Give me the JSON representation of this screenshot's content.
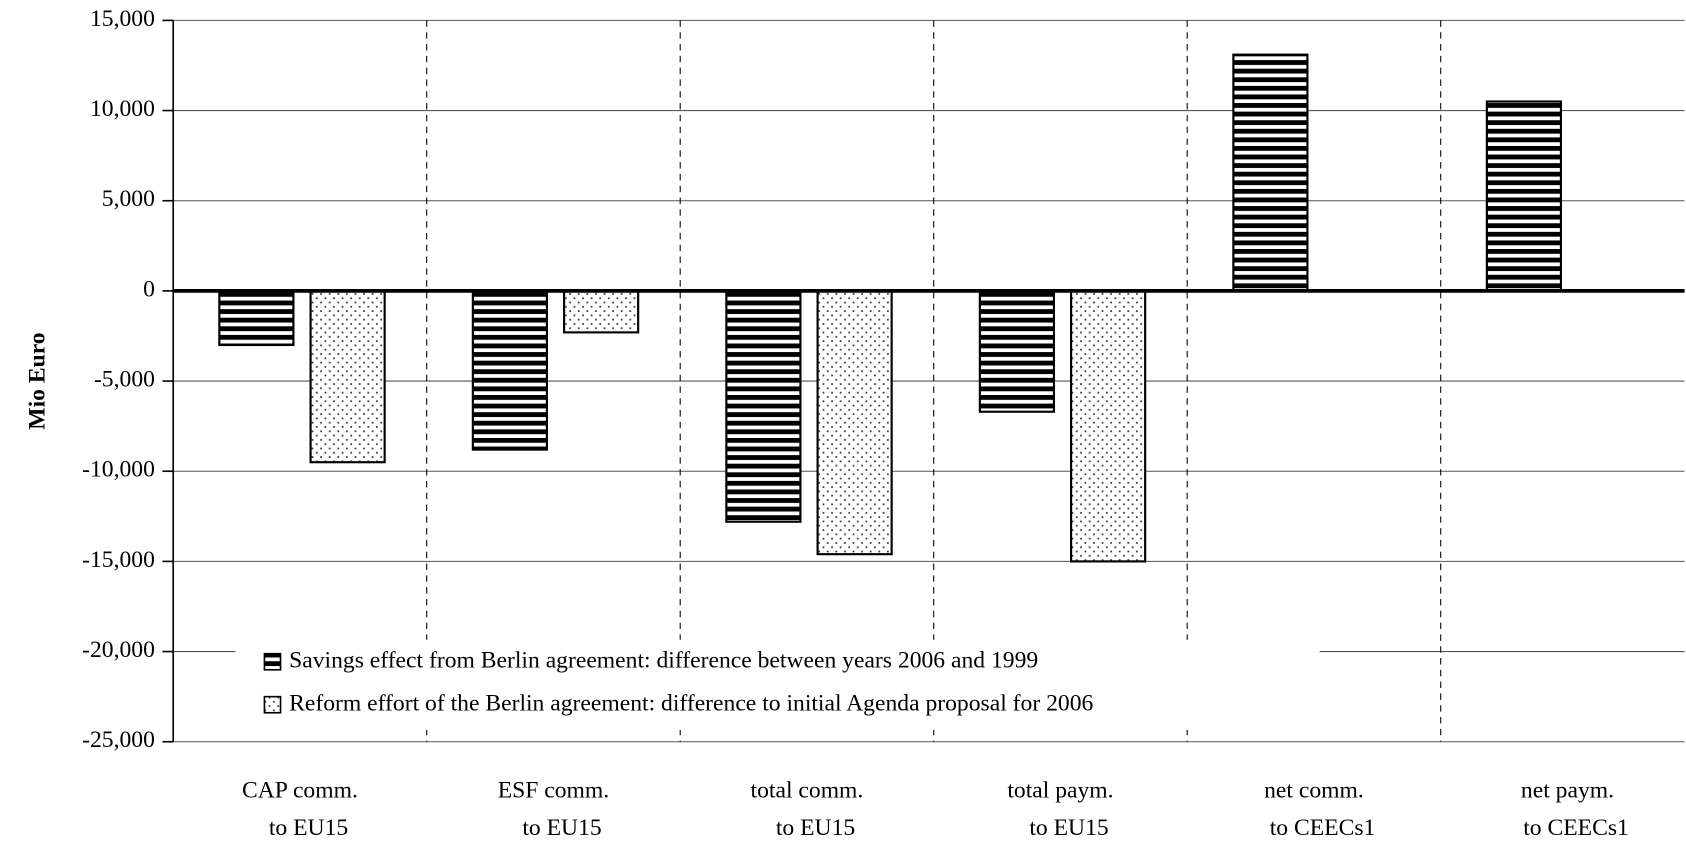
{
  "chart_data": {
    "type": "bar",
    "y_label": "Mio Euro",
    "categories": [
      [
        "CAP comm.",
        "to EU15"
      ],
      [
        "ESF comm.",
        "to EU15"
      ],
      [
        "total comm.",
        "to EU15"
      ],
      [
        "total paym.",
        "to EU15"
      ],
      [
        "net comm.",
        "to CEECs1"
      ],
      [
        "net paym.",
        "to CEECs1"
      ]
    ],
    "series": [
      {
        "name": "Savings effect from Berlin agreement: difference between years 2006 and 1999",
        "color": "#000000",
        "pattern": "horizontal-stripes",
        "values": [
          -3000,
          -8800,
          -12800,
          -6700,
          13100,
          10500
        ]
      },
      {
        "name": "Reform effort of the Berlin agreement: difference to initial Agenda proposal for 2006",
        "color": "#000000",
        "pattern": "dots",
        "values": [
          -9500,
          -2300,
          -14600,
          -15000,
          null,
          null
        ]
      }
    ],
    "ylim": [
      -25000,
      15000
    ],
    "yticks": [
      {
        "value": -25000,
        "label": "-25,000"
      },
      {
        "value": -20000,
        "label": "-20,000"
      },
      {
        "value": -15000,
        "label": "-15,000"
      },
      {
        "value": -10000,
        "label": "-10,000"
      },
      {
        "value": -5000,
        "label": "-5,000"
      },
      0,
      {
        "value": 5000,
        "label": "5,000"
      },
      {
        "value": 10000,
        "label": "10,000"
      },
      {
        "value": 15000,
        "label": "15,000"
      }
    ],
    "grid": true,
    "legend": "lower-left"
  }
}
